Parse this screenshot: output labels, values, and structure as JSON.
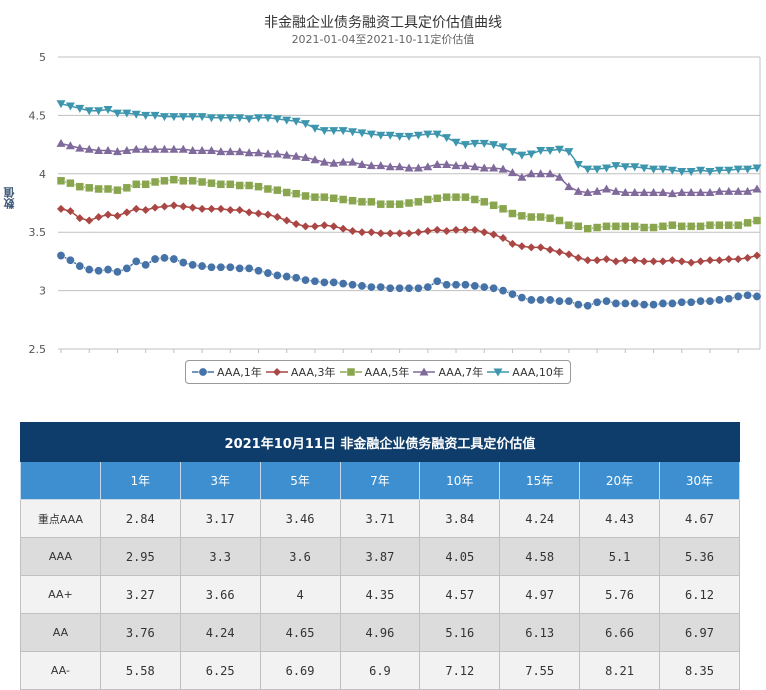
{
  "chart_data": {
    "type": "line",
    "title": "非金融企业债务融资工具定价估值曲线",
    "subtitle": "2021-01-04至2021-10-11定价估值",
    "ylabel": "数值",
    "ylim": [
      2.5,
      5
    ],
    "yticks": [
      "2.5",
      "3",
      "3.5",
      "4",
      "4.5",
      "5"
    ],
    "grid": true,
    "legend_position": "bottom",
    "series": [
      {
        "name": "AAA,1年",
        "color": "#4572a7",
        "marker": "circle",
        "values": [
          3.3,
          3.26,
          3.21,
          3.18,
          3.17,
          3.18,
          3.16,
          3.19,
          3.25,
          3.22,
          3.27,
          3.28,
          3.27,
          3.24,
          3.22,
          3.21,
          3.2,
          3.2,
          3.2,
          3.19,
          3.19,
          3.17,
          3.15,
          3.13,
          3.12,
          3.11,
          3.09,
          3.08,
          3.07,
          3.07,
          3.06,
          3.05,
          3.04,
          3.03,
          3.03,
          3.02,
          3.02,
          3.02,
          3.02,
          3.03,
          3.08,
          3.05,
          3.05,
          3.05,
          3.04,
          3.03,
          3.02,
          3.0,
          2.97,
          2.94,
          2.92,
          2.92,
          2.92,
          2.91,
          2.91,
          2.88,
          2.87,
          2.9,
          2.91,
          2.89,
          2.89,
          2.89,
          2.88,
          2.88,
          2.89,
          2.89,
          2.9,
          2.9,
          2.91,
          2.91,
          2.92,
          2.93,
          2.95,
          2.96,
          2.95
        ]
      },
      {
        "name": "AAA,3年",
        "color": "#aa4643",
        "marker": "diamond",
        "values": [
          3.7,
          3.68,
          3.62,
          3.6,
          3.63,
          3.65,
          3.64,
          3.67,
          3.7,
          3.69,
          3.71,
          3.72,
          3.73,
          3.72,
          3.71,
          3.7,
          3.7,
          3.7,
          3.69,
          3.69,
          3.67,
          3.66,
          3.65,
          3.63,
          3.6,
          3.57,
          3.55,
          3.55,
          3.56,
          3.55,
          3.53,
          3.51,
          3.5,
          3.5,
          3.49,
          3.49,
          3.49,
          3.49,
          3.5,
          3.51,
          3.52,
          3.51,
          3.52,
          3.52,
          3.52,
          3.5,
          3.48,
          3.45,
          3.4,
          3.38,
          3.37,
          3.37,
          3.35,
          3.33,
          3.31,
          3.28,
          3.26,
          3.26,
          3.27,
          3.25,
          3.26,
          3.26,
          3.25,
          3.25,
          3.25,
          3.26,
          3.25,
          3.24,
          3.25,
          3.26,
          3.26,
          3.27,
          3.27,
          3.28,
          3.3
        ]
      },
      {
        "name": "AAA,5年",
        "color": "#89a54e",
        "marker": "square",
        "values": [
          3.94,
          3.92,
          3.89,
          3.88,
          3.87,
          3.87,
          3.86,
          3.88,
          3.91,
          3.91,
          3.93,
          3.94,
          3.95,
          3.94,
          3.94,
          3.93,
          3.92,
          3.91,
          3.91,
          3.9,
          3.9,
          3.89,
          3.87,
          3.86,
          3.84,
          3.83,
          3.81,
          3.8,
          3.8,
          3.79,
          3.78,
          3.77,
          3.76,
          3.76,
          3.74,
          3.74,
          3.74,
          3.75,
          3.76,
          3.78,
          3.79,
          3.8,
          3.8,
          3.8,
          3.78,
          3.76,
          3.73,
          3.7,
          3.66,
          3.64,
          3.63,
          3.63,
          3.62,
          3.6,
          3.56,
          3.55,
          3.53,
          3.54,
          3.55,
          3.55,
          3.55,
          3.55,
          3.54,
          3.54,
          3.55,
          3.56,
          3.55,
          3.55,
          3.55,
          3.56,
          3.56,
          3.56,
          3.56,
          3.58,
          3.6
        ]
      },
      {
        "name": "AAA,7年",
        "color": "#80699b",
        "marker": "triangle",
        "values": [
          4.26,
          4.24,
          4.22,
          4.21,
          4.2,
          4.2,
          4.19,
          4.2,
          4.21,
          4.21,
          4.21,
          4.21,
          4.21,
          4.21,
          4.2,
          4.2,
          4.2,
          4.19,
          4.19,
          4.19,
          4.18,
          4.18,
          4.17,
          4.17,
          4.16,
          4.15,
          4.14,
          4.12,
          4.1,
          4.09,
          4.1,
          4.1,
          4.08,
          4.07,
          4.07,
          4.06,
          4.06,
          4.05,
          4.05,
          4.06,
          4.08,
          4.08,
          4.07,
          4.07,
          4.06,
          4.05,
          4.05,
          4.04,
          4.01,
          3.97,
          4.0,
          4.0,
          4.0,
          3.97,
          3.89,
          3.85,
          3.84,
          3.85,
          3.87,
          3.85,
          3.84,
          3.84,
          3.84,
          3.84,
          3.84,
          3.83,
          3.84,
          3.84,
          3.84,
          3.84,
          3.85,
          3.85,
          3.85,
          3.85,
          3.87
        ]
      },
      {
        "name": "AAA,10年",
        "color": "#3d96ae",
        "marker": "triangle-down",
        "values": [
          4.6,
          4.58,
          4.56,
          4.54,
          4.54,
          4.55,
          4.52,
          4.52,
          4.51,
          4.5,
          4.5,
          4.49,
          4.49,
          4.49,
          4.49,
          4.49,
          4.48,
          4.48,
          4.48,
          4.48,
          4.47,
          4.48,
          4.48,
          4.47,
          4.46,
          4.45,
          4.43,
          4.39,
          4.37,
          4.37,
          4.37,
          4.36,
          4.35,
          4.34,
          4.33,
          4.33,
          4.32,
          4.32,
          4.33,
          4.34,
          4.34,
          4.31,
          4.27,
          4.25,
          4.26,
          4.26,
          4.25,
          4.23,
          4.19,
          4.16,
          4.17,
          4.2,
          4.2,
          4.21,
          4.19,
          4.08,
          4.04,
          4.04,
          4.05,
          4.07,
          4.06,
          4.06,
          4.05,
          4.04,
          4.04,
          4.03,
          4.02,
          4.02,
          4.03,
          4.02,
          4.03,
          4.03,
          4.04,
          4.04,
          4.05
        ]
      }
    ]
  },
  "table": {
    "title": "2021年10月11日  非金融企业债务融资工具定价估值",
    "headers": [
      "",
      "1年",
      "3年",
      "5年",
      "7年",
      "10年",
      "15年",
      "20年",
      "30年"
    ],
    "rows": [
      [
        "重点AAA",
        "2.84",
        "3.17",
        "3.46",
        "3.71",
        "3.84",
        "4.24",
        "4.43",
        "4.67"
      ],
      [
        "AAA",
        "2.95",
        "3.3",
        "3.6",
        "3.87",
        "4.05",
        "4.58",
        "5.1",
        "5.36"
      ],
      [
        "AA+",
        "3.27",
        "3.66",
        "4",
        "4.35",
        "4.57",
        "4.97",
        "5.76",
        "6.12"
      ],
      [
        "AA",
        "3.76",
        "4.24",
        "4.65",
        "4.96",
        "5.16",
        "6.13",
        "6.66",
        "6.97"
      ],
      [
        "AA-",
        "5.58",
        "6.25",
        "6.69",
        "6.9",
        "7.12",
        "7.55",
        "8.21",
        "8.35"
      ]
    ]
  }
}
